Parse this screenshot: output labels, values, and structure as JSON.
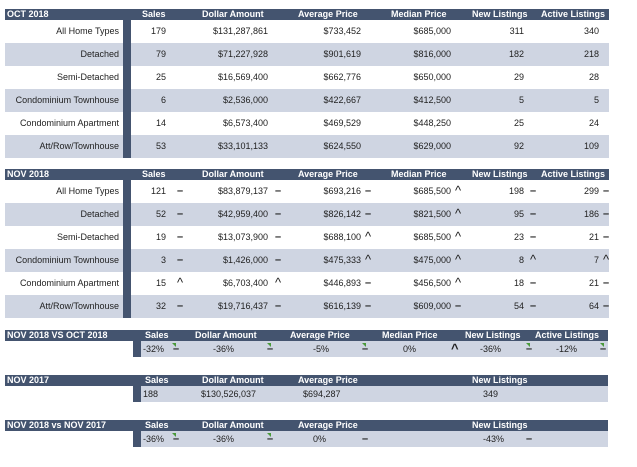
{
  "colors": {
    "header": "#44546f",
    "stripe": "#cfd5e2",
    "accent_arrow": "#4a9a3a"
  },
  "oct2018": {
    "title": "OCT 2018",
    "cols": [
      "Sales",
      "Dollar Amount",
      "Average Price",
      "Median Price",
      "New Listings",
      "Active Listings"
    ],
    "rows": [
      {
        "label": "All Home Types",
        "vals": [
          "179",
          "$131,287,861",
          "$733,452",
          "$685,000",
          "311",
          "340"
        ]
      },
      {
        "label": "Detached",
        "vals": [
          "79",
          "$71,227,928",
          "$901,619",
          "$816,000",
          "182",
          "218"
        ]
      },
      {
        "label": "Semi-Detached",
        "vals": [
          "25",
          "$16,569,400",
          "$662,776",
          "$650,000",
          "29",
          "28"
        ]
      },
      {
        "label": "Condominium Townhouse",
        "vals": [
          "6",
          "$2,536,000",
          "$422,667",
          "$412,500",
          "5",
          "5"
        ]
      },
      {
        "label": "Condominium Apartment",
        "vals": [
          "14",
          "$6,573,400",
          "$469,529",
          "$448,250",
          "25",
          "24"
        ]
      },
      {
        "label": "Att/Row/Townhouse",
        "vals": [
          "53",
          "$33,101,133",
          "$624,550",
          "$629,000",
          "92",
          "109"
        ]
      }
    ]
  },
  "nov2018": {
    "title": "NOV 2018",
    "cols": [
      "Sales",
      "Dollar Amount",
      "Average Price",
      "Median Price",
      "New Listings",
      "Active Listings"
    ],
    "rows": [
      {
        "label": "All Home Types",
        "vals": [
          "121",
          "$83,879,137",
          "$693,216",
          "$685,500",
          "198",
          "299"
        ],
        "ind": [
          "down",
          "down",
          "down",
          "up",
          "down",
          "down"
        ]
      },
      {
        "label": "Detached",
        "vals": [
          "52",
          "$42,959,400",
          "$826,142",
          "$821,500",
          "95",
          "186"
        ],
        "ind": [
          "down",
          "down",
          "down",
          "up",
          "down",
          "down"
        ]
      },
      {
        "label": "Semi-Detached",
        "vals": [
          "19",
          "$13,073,900",
          "$688,100",
          "$685,500",
          "23",
          "21"
        ],
        "ind": [
          "down",
          "down",
          "up",
          "up",
          "down",
          "down"
        ]
      },
      {
        "label": "Condominium Townhouse",
        "vals": [
          "3",
          "$1,426,000",
          "$475,333",
          "$475,000",
          "8",
          "7"
        ],
        "ind": [
          "down",
          "down",
          "up",
          "up",
          "up",
          "up"
        ]
      },
      {
        "label": "Condominium Apartment",
        "vals": [
          "15",
          "$6,703,400",
          "$446,893",
          "$456,500",
          "18",
          "21"
        ],
        "ind": [
          "up",
          "up",
          "down",
          "up",
          "down",
          "down"
        ]
      },
      {
        "label": "Att/Row/Townhouse",
        "vals": [
          "32",
          "$19,716,437",
          "$616,139",
          "$609,000",
          "54",
          "64"
        ],
        "ind": [
          "down",
          "down",
          "down",
          "down",
          "down",
          "down"
        ]
      }
    ]
  },
  "nov_vs_oct": {
    "title": "NOV 2018 VS OCT 2018",
    "cols": [
      "Sales",
      "Dollar Amount",
      "Average Price",
      "Median Price",
      "New Listings",
      "Active Listings"
    ],
    "vals": [
      "-32%",
      "-36%",
      "-5%",
      "0%",
      "-36%",
      "-12%"
    ],
    "ind": [
      "down",
      "down",
      "down",
      "up",
      "down",
      "down"
    ]
  },
  "nov2017": {
    "title": "NOV 2017",
    "cols": [
      "Sales",
      "Dollar Amount",
      "Average Price",
      "New Listings"
    ],
    "vals": [
      "188",
      "$130,526,037",
      "$694,287",
      "349"
    ]
  },
  "nov_vs_nov": {
    "title": "NOV 2018 vs NOV 2017",
    "cols": [
      "Sales",
      "Dollar Amount",
      "Average Price",
      "New Listings"
    ],
    "vals": [
      "-36%",
      "-36%",
      "0%",
      "-43%"
    ],
    "ind": [
      "down",
      "down",
      "down",
      "down"
    ]
  }
}
